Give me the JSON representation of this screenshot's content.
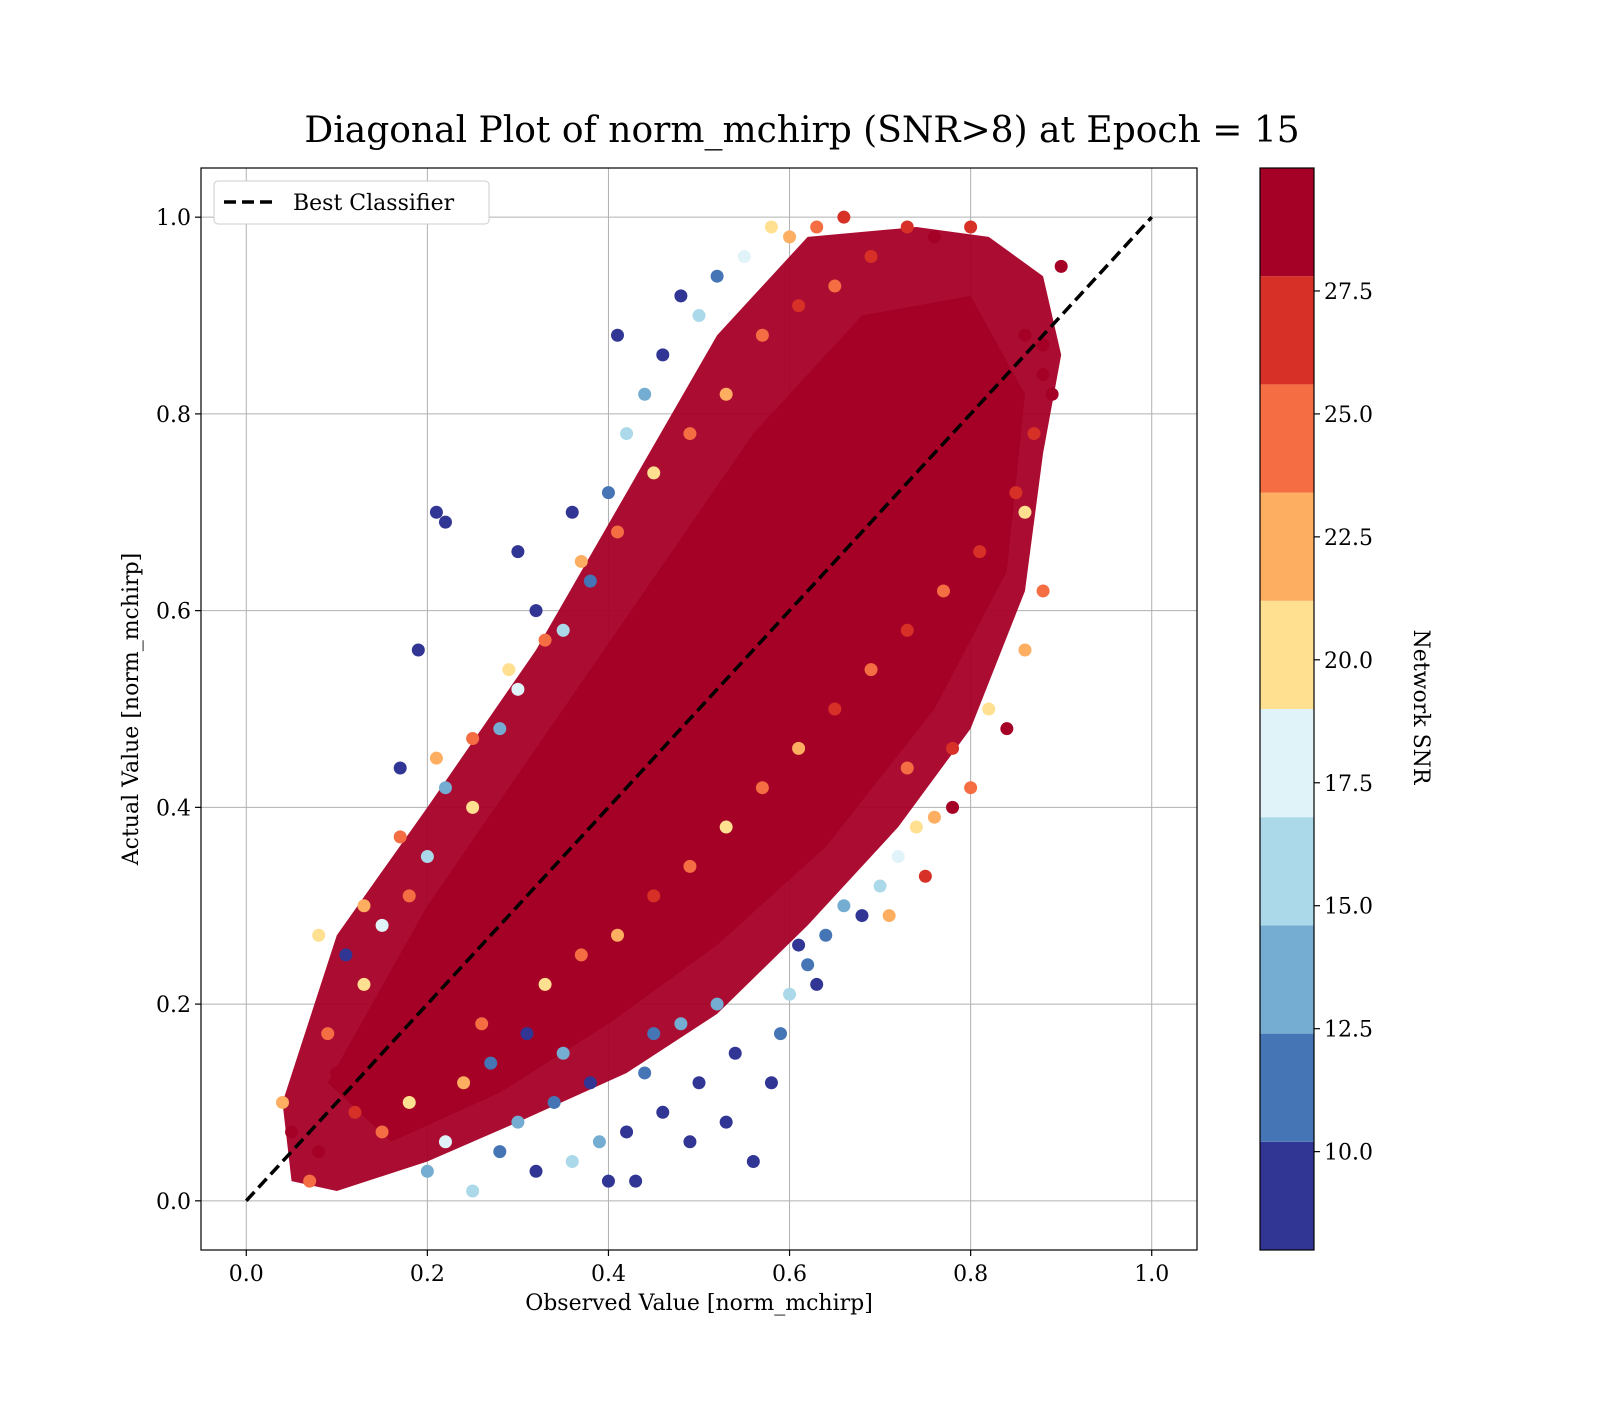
{
  "chart_data": {
    "type": "scatter",
    "title": "Diagonal Plot of norm_mchirp (SNR>8) at Epoch = 15",
    "xlabel": "Observed Value [norm_mchirp]",
    "ylabel": "Actual Value [norm_mchirp]",
    "xlim": [
      -0.05,
      1.05
    ],
    "ylim": [
      -0.05,
      1.05
    ],
    "x_ticks": [
      "0.0",
      "0.2",
      "0.4",
      "0.6",
      "0.8",
      "1.0"
    ],
    "y_ticks": [
      "0.0",
      "0.2",
      "0.4",
      "0.6",
      "0.8",
      "1.0"
    ],
    "grid": true,
    "legend": {
      "position": "top-left",
      "entries": [
        "Best Classifier"
      ]
    },
    "reference_line": {
      "label": "Best Classifier",
      "style": "dashed",
      "color": "#000000",
      "x": [
        0.0,
        1.0
      ],
      "y": [
        0.0,
        1.0
      ]
    },
    "colorbar": {
      "label": "Network SNR",
      "range": [
        8.0,
        30.0
      ],
      "ticks": [
        "10.0",
        "12.5",
        "15.0",
        "17.5",
        "20.0",
        "22.5",
        "25.0",
        "27.5"
      ],
      "tick_values": [
        10.0,
        12.5,
        15.0,
        17.5,
        20.0,
        22.5,
        25.0,
        27.5
      ],
      "bins": [
        8.0,
        10.2,
        12.4,
        14.6,
        16.8,
        19.0,
        21.2,
        23.4,
        25.6,
        27.8,
        30.0
      ],
      "colors": [
        "#313695",
        "#4575b4",
        "#74add1",
        "#abd9e9",
        "#e0f3f8",
        "#fee090",
        "#fdae61",
        "#f46d43",
        "#d73027",
        "#a50026"
      ]
    },
    "point_color_default": "#a50026",
    "series": [
      {
        "points": [
          [
            0.05,
            0.07,
            29
          ],
          [
            0.08,
            0.05,
            28
          ],
          [
            0.1,
            0.13,
            29
          ],
          [
            0.12,
            0.09,
            27
          ],
          [
            0.14,
            0.17,
            29
          ],
          [
            0.16,
            0.12,
            28
          ],
          [
            0.18,
            0.21,
            29
          ],
          [
            0.2,
            0.16,
            29
          ],
          [
            0.22,
            0.25,
            28
          ],
          [
            0.24,
            0.2,
            29
          ],
          [
            0.26,
            0.29,
            29
          ],
          [
            0.28,
            0.24,
            28
          ],
          [
            0.3,
            0.33,
            29
          ],
          [
            0.32,
            0.28,
            29
          ],
          [
            0.34,
            0.37,
            28
          ],
          [
            0.36,
            0.32,
            29
          ],
          [
            0.38,
            0.41,
            29
          ],
          [
            0.4,
            0.36,
            28
          ],
          [
            0.42,
            0.45,
            29
          ],
          [
            0.44,
            0.4,
            29
          ],
          [
            0.46,
            0.49,
            28
          ],
          [
            0.48,
            0.44,
            29
          ],
          [
            0.5,
            0.53,
            29
          ],
          [
            0.52,
            0.48,
            28
          ],
          [
            0.54,
            0.57,
            29
          ],
          [
            0.56,
            0.52,
            29
          ],
          [
            0.58,
            0.61,
            28
          ],
          [
            0.6,
            0.56,
            29
          ],
          [
            0.62,
            0.65,
            29
          ],
          [
            0.64,
            0.6,
            28
          ],
          [
            0.66,
            0.69,
            29
          ],
          [
            0.68,
            0.64,
            29
          ],
          [
            0.7,
            0.73,
            28
          ],
          [
            0.72,
            0.68,
            29
          ],
          [
            0.74,
            0.77,
            29
          ],
          [
            0.76,
            0.72,
            28
          ],
          [
            0.78,
            0.81,
            29
          ],
          [
            0.8,
            0.76,
            29
          ],
          [
            0.82,
            0.85,
            28
          ],
          [
            0.84,
            0.8,
            29
          ],
          [
            0.86,
            0.88,
            29
          ],
          [
            0.88,
            0.84,
            28
          ],
          [
            0.9,
            0.95,
            29
          ],
          [
            0.88,
            0.87,
            28
          ],
          [
            0.07,
            0.02,
            24
          ],
          [
            0.04,
            0.1,
            22
          ],
          [
            0.15,
            0.28,
            18
          ],
          [
            0.13,
            0.22,
            21
          ],
          [
            0.2,
            0.35,
            16
          ],
          [
            0.18,
            0.31,
            24
          ],
          [
            0.22,
            0.42,
            14
          ],
          [
            0.25,
            0.4,
            19
          ],
          [
            0.28,
            0.48,
            13
          ],
          [
            0.3,
            0.52,
            17
          ],
          [
            0.32,
            0.6,
            10
          ],
          [
            0.3,
            0.66,
            9
          ],
          [
            0.35,
            0.58,
            15
          ],
          [
            0.36,
            0.7,
            9
          ],
          [
            0.38,
            0.63,
            12
          ],
          [
            0.4,
            0.72,
            11
          ],
          [
            0.42,
            0.78,
            16
          ],
          [
            0.41,
            0.88,
            9
          ],
          [
            0.44,
            0.82,
            13
          ],
          [
            0.46,
            0.86,
            10
          ],
          [
            0.48,
            0.92,
            9
          ],
          [
            0.5,
            0.9,
            15
          ],
          [
            0.52,
            0.94,
            12
          ],
          [
            0.55,
            0.96,
            18
          ],
          [
            0.58,
            0.99,
            20
          ],
          [
            0.6,
            0.98,
            22
          ],
          [
            0.63,
            0.99,
            24
          ],
          [
            0.66,
            1.0,
            26
          ],
          [
            0.22,
            0.69,
            9
          ],
          [
            0.21,
            0.7,
            9
          ],
          [
            0.19,
            0.56,
            9
          ],
          [
            0.17,
            0.44,
            9
          ],
          [
            0.11,
            0.25,
            9
          ],
          [
            0.08,
            0.27,
            19
          ],
          [
            0.2,
            0.03,
            14
          ],
          [
            0.22,
            0.06,
            18
          ],
          [
            0.25,
            0.01,
            16
          ],
          [
            0.28,
            0.05,
            11
          ],
          [
            0.3,
            0.08,
            13
          ],
          [
            0.32,
            0.03,
            10
          ],
          [
            0.34,
            0.1,
            12
          ],
          [
            0.36,
            0.04,
            15
          ],
          [
            0.38,
            0.12,
            9
          ],
          [
            0.4,
            0.02,
            10
          ],
          [
            0.42,
            0.07,
            9
          ],
          [
            0.44,
            0.13,
            11
          ],
          [
            0.46,
            0.09,
            9
          ],
          [
            0.48,
            0.18,
            13
          ],
          [
            0.5,
            0.12,
            10
          ],
          [
            0.52,
            0.2,
            14
          ],
          [
            0.54,
            0.15,
            9
          ],
          [
            0.56,
            0.04,
            9
          ],
          [
            0.58,
            0.12,
            9
          ],
          [
            0.6,
            0.21,
            16
          ],
          [
            0.62,
            0.24,
            12
          ],
          [
            0.64,
            0.27,
            11
          ],
          [
            0.66,
            0.3,
            14
          ],
          [
            0.68,
            0.29,
            9
          ],
          [
            0.7,
            0.32,
            16
          ],
          [
            0.72,
            0.35,
            18
          ],
          [
            0.74,
            0.38,
            20
          ],
          [
            0.76,
            0.39,
            22
          ],
          [
            0.78,
            0.4,
            29
          ],
          [
            0.8,
            0.42,
            24
          ],
          [
            0.82,
            0.5,
            19
          ],
          [
            0.84,
            0.48,
            28
          ],
          [
            0.86,
            0.56,
            22
          ],
          [
            0.88,
            0.62,
            24
          ],
          [
            0.86,
            0.7,
            20
          ],
          [
            0.63,
            0.22,
            9
          ],
          [
            0.71,
            0.29,
            23
          ],
          [
            0.75,
            0.33,
            27
          ],
          [
            0.73,
            0.44,
            25
          ],
          [
            0.78,
            0.46,
            26
          ],
          [
            0.27,
            0.14,
            12
          ],
          [
            0.31,
            0.17,
            9
          ],
          [
            0.35,
            0.15,
            14
          ],
          [
            0.39,
            0.06,
            13
          ],
          [
            0.43,
            0.02,
            9
          ],
          [
            0.45,
            0.17,
            12
          ],
          [
            0.49,
            0.06,
            9
          ],
          [
            0.53,
            0.08,
            10
          ],
          [
            0.59,
            0.17,
            11
          ],
          [
            0.61,
            0.26,
            10
          ],
          [
            0.15,
            0.07,
            24
          ],
          [
            0.18,
            0.1,
            20
          ],
          [
            0.24,
            0.12,
            23
          ],
          [
            0.26,
            0.18,
            25
          ],
          [
            0.33,
            0.22,
            21
          ],
          [
            0.37,
            0.25,
            24
          ],
          [
            0.41,
            0.27,
            22
          ],
          [
            0.45,
            0.31,
            26
          ],
          [
            0.49,
            0.34,
            24
          ],
          [
            0.53,
            0.38,
            21
          ],
          [
            0.57,
            0.42,
            25
          ],
          [
            0.61,
            0.46,
            23
          ],
          [
            0.65,
            0.5,
            26
          ],
          [
            0.69,
            0.54,
            24
          ],
          [
            0.73,
            0.58,
            27
          ],
          [
            0.77,
            0.62,
            25
          ],
          [
            0.81,
            0.66,
            26
          ],
          [
            0.85,
            0.72,
            27
          ],
          [
            0.87,
            0.78,
            26
          ],
          [
            0.89,
            0.82,
            28
          ],
          [
            0.09,
            0.17,
            24
          ],
          [
            0.13,
            0.3,
            23
          ],
          [
            0.17,
            0.37,
            25
          ],
          [
            0.21,
            0.45,
            22
          ],
          [
            0.25,
            0.47,
            24
          ],
          [
            0.29,
            0.54,
            21
          ],
          [
            0.33,
            0.57,
            25
          ],
          [
            0.37,
            0.65,
            22
          ],
          [
            0.41,
            0.68,
            24
          ],
          [
            0.45,
            0.74,
            21
          ],
          [
            0.49,
            0.78,
            25
          ],
          [
            0.53,
            0.82,
            23
          ],
          [
            0.57,
            0.88,
            24
          ],
          [
            0.61,
            0.91,
            26
          ],
          [
            0.65,
            0.93,
            25
          ],
          [
            0.69,
            0.96,
            27
          ],
          [
            0.73,
            0.99,
            26
          ],
          [
            0.76,
            0.98,
            28
          ],
          [
            0.8,
            0.99,
            27
          ]
        ]
      }
    ]
  }
}
